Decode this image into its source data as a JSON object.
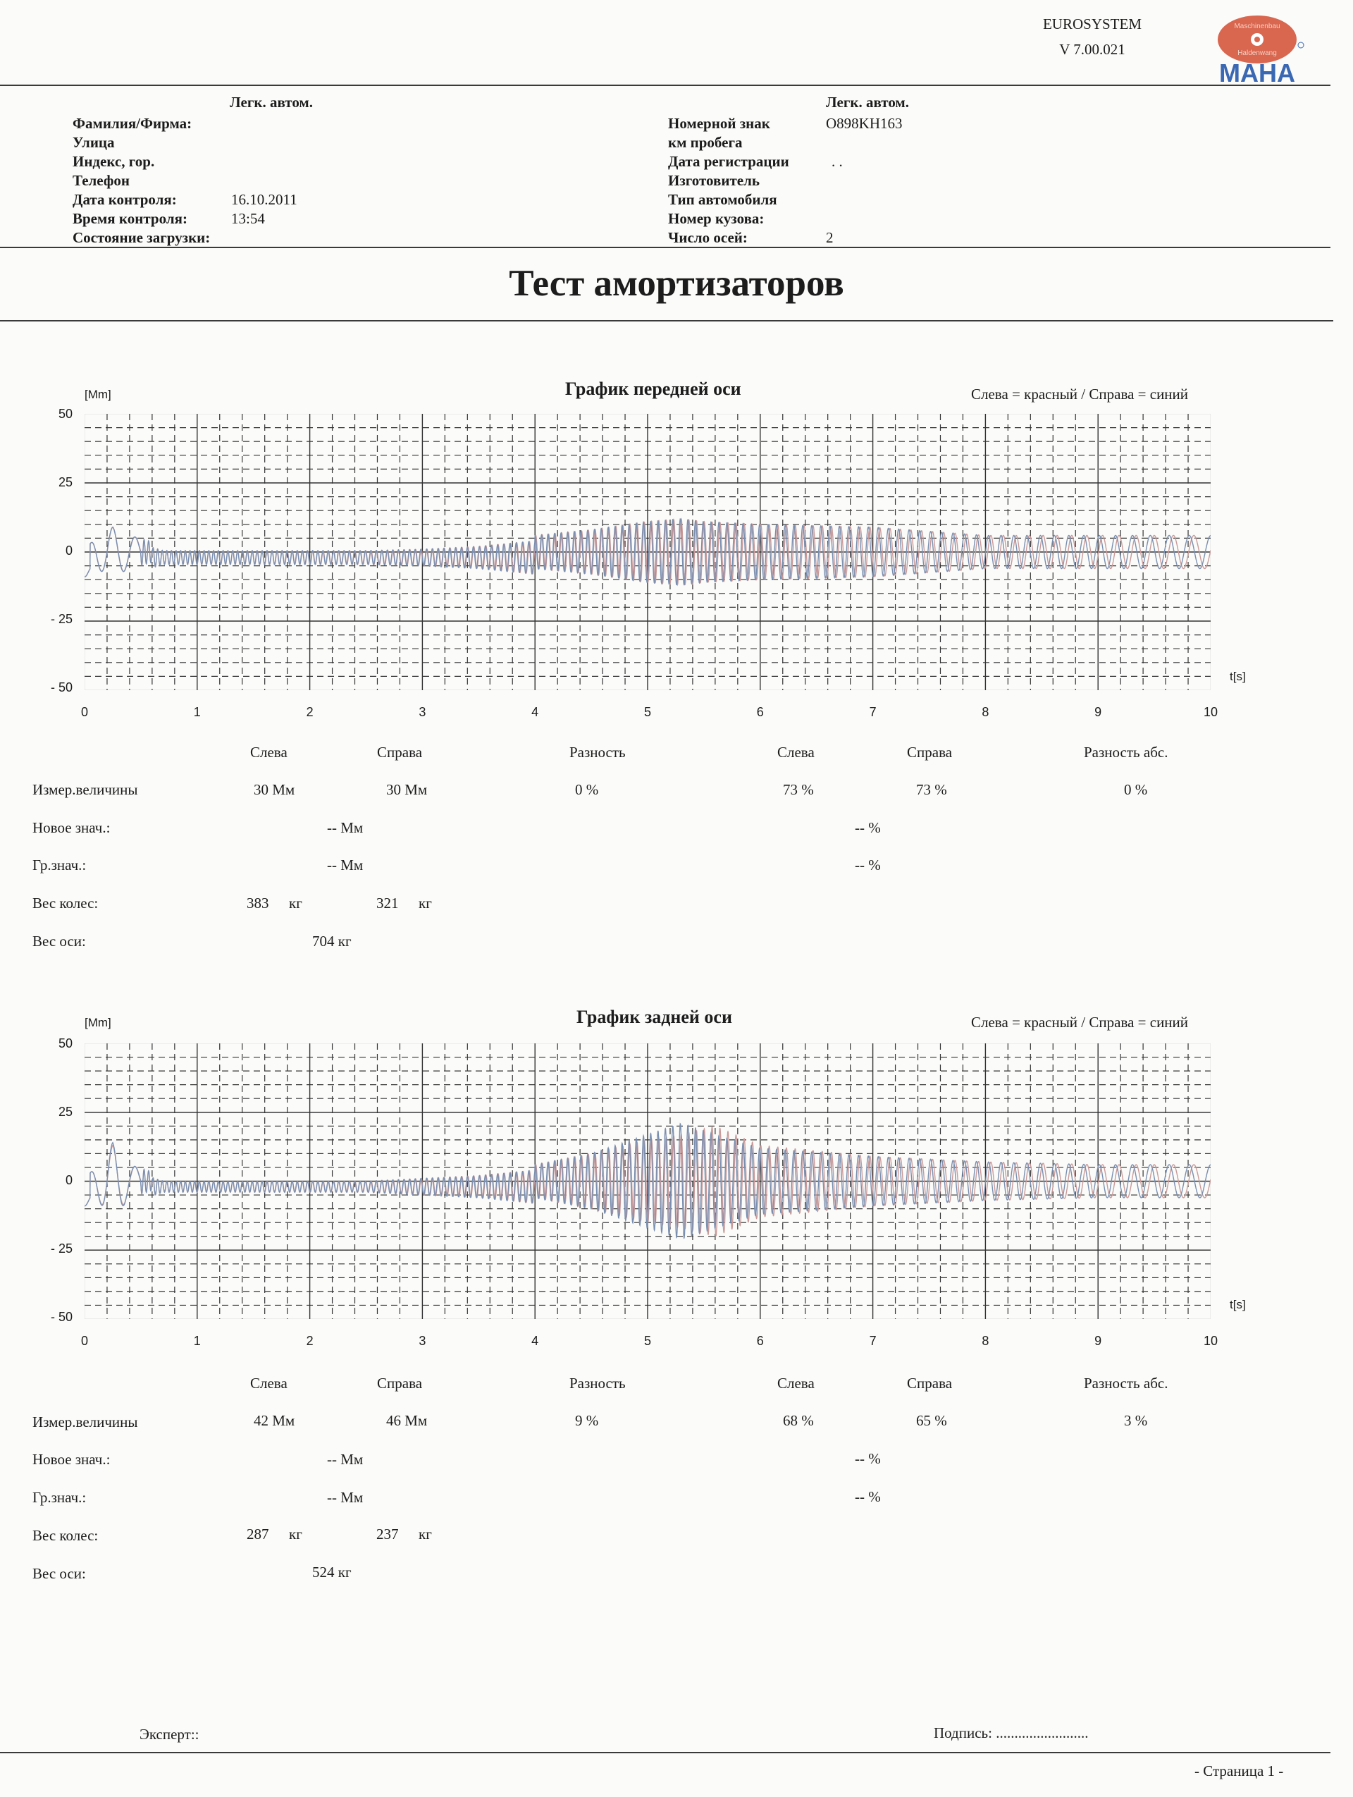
{
  "brand": {
    "name": "EUROSYSTEM",
    "version": "V 7.00.021",
    "logo": "maha-logo",
    "logo_text": "MAHA",
    "logo_arc_top": "Maschinenbau",
    "logo_arc_bottom": "Haldenwang",
    "logo_colors": {
      "red": "#d9664f",
      "blue": "#3a68b3"
    }
  },
  "header": {
    "left_category": "Легк. автом.",
    "right_category": "Легк. автом.",
    "left_fields": [
      {
        "label": "Фамилия/Фирма:",
        "value": ""
      },
      {
        "label": "Улица",
        "value": ""
      },
      {
        "label": "Индекс, гор.",
        "value": ""
      },
      {
        "label": "Телефон",
        "value": ""
      },
      {
        "label": "Дата контроля:",
        "value": "16.10.2011"
      },
      {
        "label": "Время контроля:",
        "value": "13:54"
      },
      {
        "label": "Состояние загрузки:",
        "value": ""
      }
    ],
    "right_fields": [
      {
        "label": "Номерной знак",
        "value": "O898KH163"
      },
      {
        "label": "км пробега",
        "value": ""
      },
      {
        "label": "Дата регистрации",
        "value": ". ."
      },
      {
        "label": "Изготовитель",
        "value": ""
      },
      {
        "label": "Тип автомобиля",
        "value": ""
      },
      {
        "label": "Номер кузова:",
        "value": ""
      },
      {
        "label": "Число осей:",
        "value": "2"
      }
    ]
  },
  "title": "Тест амортизаторов",
  "colors": {
    "left_trace": "#c99a9a",
    "right_trace": "#7a8fb0",
    "grid": "#333333"
  },
  "sections": [
    {
      "chart_title": "График передней оси",
      "legend": "Слева = красный / Справа = синий",
      "y_unit": "[Mm]",
      "x_unit": "t[s]",
      "table": {
        "headers": [
          "Слева",
          "Справа",
          "Разность",
          "Слева",
          "Справа",
          "Разность абс."
        ],
        "measured_label": "Измер.величины",
        "measured": [
          "30 Мм",
          "30 Мм",
          "0 %",
          "73 %",
          "73 %",
          "0 %"
        ],
        "new_label": "Новое знач.:",
        "new_mm": "-- Мм",
        "new_pct": "-- %",
        "limit_label": "Гр.знач.:",
        "limit_mm": "-- Мм",
        "limit_pct": "-- %",
        "wheel_label": "Вес колес:",
        "wheel_left": "383",
        "wheel_right": "321",
        "kg": "кг",
        "axle_label": "Вес оси:",
        "axle_value": "704 кг"
      }
    },
    {
      "chart_title": "График задней оси",
      "legend": "Слева = красный / Справа = синий",
      "y_unit": "[Mm]",
      "x_unit": "t[s]",
      "table": {
        "headers": [
          "Слева",
          "Справа",
          "Разность",
          "Слева",
          "Справа",
          "Разность абс."
        ],
        "measured_label": "Измер.величины",
        "measured": [
          "42 Мм",
          "46 Мм",
          "9 %",
          "68 %",
          "65 %",
          "3 %"
        ],
        "new_label": "Новое знач.:",
        "new_mm": "-- Мм",
        "new_pct": "-- %",
        "limit_label": "Гр.знач.:",
        "limit_mm": "-- Мм",
        "limit_pct": "-- %",
        "wheel_label": "Вес колес:",
        "wheel_left": "287",
        "wheel_right": "237",
        "kg": "кг",
        "axle_label": "Вес оси:",
        "axle_value": "524 кг"
      }
    }
  ],
  "footer": {
    "expert_label": "Эксперт::",
    "signature_label": "Подпись: .........................",
    "page": "-  Страница 1 -"
  },
  "chart_data": [
    {
      "type": "line",
      "title": "График передней оси",
      "xlabel": "t[s]",
      "ylabel": "[Mm]",
      "xlim": [
        0,
        10
      ],
      "ylim": [
        -50,
        50
      ],
      "x_ticks": [
        0,
        1,
        2,
        3,
        4,
        5,
        6,
        7,
        8,
        9,
        10
      ],
      "y_ticks": [
        50,
        25,
        0,
        -25,
        -50
      ],
      "y_tick_labels": [
        "50",
        "25",
        "0",
        "- 25",
        "- 50"
      ],
      "grid": true,
      "legend": "Слева = красный / Справа = синий",
      "series": [
        {
          "name": "Слева (красный)",
          "color": "#c99a9a",
          "envelope_x": [
            0,
            0.1,
            0.25,
            0.4,
            0.7,
            1.5,
            2.5,
            3.0,
            3.5,
            4.0,
            4.5,
            5.0,
            5.3,
            5.5,
            6.0,
            7.0,
            8.0,
            9.0,
            10.0
          ],
          "envelope_amp": [
            0,
            6,
            9,
            6,
            2.5,
            2.5,
            2.5,
            3,
            4,
            6,
            8,
            11,
            12,
            11,
            10,
            9,
            6,
            6,
            6
          ]
        },
        {
          "name": "Справа (синий)",
          "color": "#7a8fb0",
          "envelope_x": [
            0,
            0.1,
            0.25,
            0.4,
            0.7,
            1.5,
            2.5,
            3.0,
            3.5,
            4.0,
            4.5,
            5.0,
            5.3,
            5.5,
            6.0,
            7.0,
            8.0,
            9.0,
            10.0
          ],
          "envelope_amp": [
            0,
            6,
            9,
            6,
            2.5,
            2.5,
            2.5,
            3,
            4,
            6,
            8,
            11,
            12,
            11,
            10,
            9,
            6,
            6,
            6
          ]
        }
      ]
    },
    {
      "type": "line",
      "title": "График задней оси",
      "xlabel": "t[s]",
      "ylabel": "[Mm]",
      "xlim": [
        0,
        10
      ],
      "ylim": [
        -50,
        50
      ],
      "x_ticks": [
        0,
        1,
        2,
        3,
        4,
        5,
        6,
        7,
        8,
        9,
        10
      ],
      "y_ticks": [
        50,
        25,
        0,
        -25,
        -50
      ],
      "y_tick_labels": [
        "50",
        "25",
        "0",
        "- 25",
        "- 50"
      ],
      "grid": true,
      "legend": "Слева = красный / Справа = синий",
      "series": [
        {
          "name": "Слева (красный)",
          "color": "#c99a9a",
          "envelope_x": [
            0,
            0.1,
            0.25,
            0.4,
            0.7,
            1.5,
            2.5,
            3.0,
            3.5,
            4.0,
            4.5,
            5.0,
            5.3,
            5.6,
            6.0,
            7.0,
            8.0,
            9.0,
            10.0
          ],
          "envelope_amp": [
            0,
            6,
            13,
            6,
            2,
            2,
            2,
            3,
            4,
            6,
            10,
            15,
            17,
            20,
            13,
            9,
            7,
            6,
            6
          ]
        },
        {
          "name": "Справа (синий)",
          "color": "#7a8fb0",
          "envelope_x": [
            0,
            0.1,
            0.25,
            0.4,
            0.7,
            1.5,
            2.5,
            3.0,
            3.5,
            4.0,
            4.5,
            5.0,
            5.3,
            5.6,
            6.0,
            7.0,
            8.0,
            9.0,
            10.0
          ],
          "envelope_amp": [
            0,
            6,
            14,
            6,
            2,
            2,
            2,
            3,
            4,
            6,
            10,
            17,
            21,
            17,
            12,
            9,
            7,
            6,
            6
          ]
        }
      ]
    }
  ]
}
